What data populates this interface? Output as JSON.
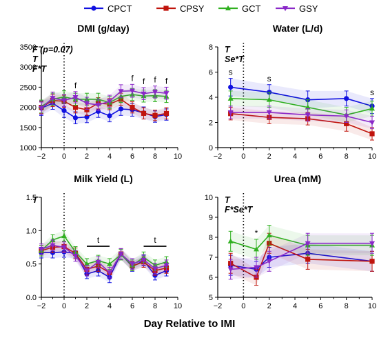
{
  "figure": {
    "xlabel": "Day Relative to IMI"
  },
  "legend": [
    {
      "name": "CPCT",
      "color": "#1010e0",
      "marker": "circle"
    },
    {
      "name": "CPSY",
      "color": "#c0140c",
      "marker": "square"
    },
    {
      "name": "GCT",
      "color": "#30b020",
      "marker": "triangle"
    },
    {
      "name": "GSY",
      "color": "#8a28c8",
      "marker": "triangle-down"
    }
  ],
  "chart_data": [
    {
      "type": "line",
      "title": "DMI (g/day)",
      "xlim": [
        -2,
        10
      ],
      "ylim": [
        1000,
        3500
      ],
      "xticks": [
        -2,
        0,
        2,
        4,
        6,
        8,
        10
      ],
      "yticks": [
        1000,
        1500,
        2000,
        2500,
        3000,
        3500
      ],
      "annotations": [
        "F (p=0.07)",
        "T",
        "F*T"
      ],
      "markers": [
        {
          "x": 1,
          "label": "f"
        },
        {
          "x": 6,
          "label": "f"
        },
        {
          "x": 7,
          "label": "f"
        },
        {
          "x": 8,
          "label": "f"
        },
        {
          "x": 9,
          "label": "f"
        }
      ],
      "series": [
        {
          "name": "CPCT",
          "x": [
            -2,
            -1,
            0,
            1,
            2,
            3,
            4,
            5,
            6,
            7,
            8,
            9
          ],
          "y": [
            1980,
            2100,
            1920,
            1740,
            1760,
            1900,
            1790,
            1960,
            1940,
            1860,
            1770,
            1820
          ],
          "err": [
            180,
            150,
            170,
            150,
            140,
            150,
            150,
            160,
            160,
            150,
            140,
            140
          ]
        },
        {
          "name": "CPSY",
          "x": [
            -2,
            -1,
            0,
            1,
            2,
            3,
            4,
            5,
            6,
            7,
            8,
            9
          ],
          "y": [
            2000,
            2170,
            2150,
            2000,
            1940,
            2100,
            2080,
            2200,
            2000,
            1850,
            1800,
            1850
          ],
          "err": [
            150,
            150,
            150,
            140,
            140,
            140,
            140,
            150,
            140,
            140,
            130,
            140
          ]
        },
        {
          "name": "GCT",
          "x": [
            -2,
            -1,
            0,
            1,
            2,
            3,
            4,
            5,
            6,
            7,
            8,
            9
          ],
          "y": [
            2020,
            2200,
            2260,
            2200,
            2200,
            2200,
            2120,
            2270,
            2320,
            2280,
            2290,
            2270
          ],
          "err": [
            160,
            150,
            150,
            150,
            150,
            150,
            150,
            150,
            150,
            150,
            150,
            150
          ]
        },
        {
          "name": "GSY",
          "x": [
            -2,
            -1,
            0,
            1,
            2,
            3,
            4,
            5,
            6,
            7,
            8,
            9
          ],
          "y": [
            1980,
            2230,
            2170,
            2250,
            2100,
            2060,
            2150,
            2400,
            2410,
            2340,
            2380,
            2350
          ],
          "err": [
            150,
            150,
            150,
            140,
            150,
            140,
            150,
            160,
            160,
            150,
            150,
            150
          ]
        }
      ]
    },
    {
      "type": "line",
      "title": "Water (L/d)",
      "xlim": [
        -2,
        10
      ],
      "ylim": [
        0,
        8
      ],
      "xticks": [
        -2,
        0,
        2,
        4,
        6,
        8,
        10
      ],
      "yticks": [
        0,
        2,
        4,
        6,
        8
      ],
      "annotations": [
        "T",
        "Se*T"
      ],
      "markers": [
        {
          "x": -1,
          "label": "s"
        },
        {
          "x": 2,
          "label": "s"
        },
        {
          "x": 10,
          "label": "s"
        }
      ],
      "series": [
        {
          "name": "CPCT",
          "x": [
            -1,
            2,
            5,
            8,
            10
          ],
          "y": [
            4.8,
            4.4,
            3.8,
            3.9,
            3.3
          ],
          "err": [
            0.7,
            0.6,
            0.7,
            0.6,
            0.6
          ]
        },
        {
          "name": "CPSY",
          "x": [
            -1,
            2,
            5,
            8,
            10
          ],
          "y": [
            2.7,
            2.4,
            2.3,
            1.9,
            1.1
          ],
          "err": [
            0.5,
            0.5,
            0.5,
            0.6,
            0.5
          ]
        },
        {
          "name": "GCT",
          "x": [
            -1,
            2,
            5,
            8,
            10
          ],
          "y": [
            3.9,
            3.8,
            3.2,
            2.6,
            3.1
          ],
          "err": [
            0.6,
            0.6,
            0.6,
            0.6,
            0.6
          ]
        },
        {
          "name": "GSY",
          "x": [
            -1,
            2,
            5,
            8,
            10
          ],
          "y": [
            2.8,
            2.8,
            2.6,
            2.5,
            2.0
          ],
          "err": [
            0.5,
            0.5,
            0.5,
            0.5,
            0.5
          ]
        }
      ]
    },
    {
      "type": "line",
      "title": "Milk Yield (L)",
      "xlim": [
        -2,
        10
      ],
      "ylim": [
        0.0,
        1.5
      ],
      "xticks": [
        -2,
        0,
        2,
        4,
        6,
        8,
        10
      ],
      "yticks": [
        0.0,
        0.5,
        1.0,
        1.5
      ],
      "annotations": [
        "T"
      ],
      "markers": [
        {
          "x1": 2,
          "x2": 4,
          "y": 0.6,
          "label": "t"
        },
        {
          "x1": 7,
          "x2": 9,
          "y": 0.6,
          "label": "t"
        }
      ],
      "series": [
        {
          "name": "CPCT",
          "x": [
            -2,
            -1,
            0,
            1,
            2,
            3,
            4,
            5,
            6,
            7,
            8,
            9
          ],
          "y": [
            0.67,
            0.67,
            0.68,
            0.66,
            0.35,
            0.4,
            0.3,
            0.65,
            0.46,
            0.55,
            0.33,
            0.4
          ],
          "err": [
            0.08,
            0.08,
            0.08,
            0.08,
            0.07,
            0.08,
            0.08,
            0.08,
            0.07,
            0.08,
            0.07,
            0.08
          ]
        },
        {
          "name": "CPSY",
          "x": [
            -2,
            -1,
            0,
            1,
            2,
            3,
            4,
            5,
            6,
            7,
            8,
            9
          ],
          "y": [
            0.7,
            0.75,
            0.76,
            0.66,
            0.42,
            0.47,
            0.37,
            0.65,
            0.47,
            0.53,
            0.4,
            0.44
          ],
          "err": [
            0.08,
            0.08,
            0.08,
            0.08,
            0.08,
            0.08,
            0.08,
            0.08,
            0.07,
            0.08,
            0.07,
            0.08
          ]
        },
        {
          "name": "GCT",
          "x": [
            -2,
            -1,
            0,
            1,
            2,
            3,
            4,
            5,
            6,
            7,
            8,
            9
          ],
          "y": [
            0.7,
            0.86,
            0.92,
            0.68,
            0.5,
            0.55,
            0.5,
            0.64,
            0.48,
            0.6,
            0.48,
            0.53
          ],
          "err": [
            0.08,
            0.08,
            0.08,
            0.08,
            0.08,
            0.08,
            0.08,
            0.08,
            0.08,
            0.08,
            0.08,
            0.08
          ]
        },
        {
          "name": "GSY",
          "x": [
            -2,
            -1,
            0,
            1,
            2,
            3,
            4,
            5,
            6,
            7,
            8,
            9
          ],
          "y": [
            0.72,
            0.78,
            0.75,
            0.62,
            0.4,
            0.53,
            0.37,
            0.65,
            0.5,
            0.56,
            0.43,
            0.48
          ],
          "err": [
            0.08,
            0.08,
            0.08,
            0.08,
            0.08,
            0.08,
            0.08,
            0.08,
            0.08,
            0.08,
            0.08,
            0.08
          ]
        }
      ]
    },
    {
      "type": "line",
      "title": "Urea (mM)",
      "xlim": [
        -2,
        10
      ],
      "ylim": [
        5,
        10
      ],
      "xticks": [
        -2,
        0,
        2,
        4,
        6,
        8,
        10
      ],
      "yticks": [
        5,
        6,
        7,
        8,
        9,
        10
      ],
      "annotations": [
        "T",
        "F*Se*T"
      ],
      "markers": [
        {
          "x": 1,
          "label": "*"
        }
      ],
      "series": [
        {
          "name": "CPCT",
          "x": [
            -1,
            1,
            2,
            5,
            10
          ],
          "y": [
            6.6,
            6.4,
            7.0,
            7.2,
            6.8
          ],
          "err": [
            0.5,
            0.4,
            0.5,
            0.5,
            0.5
          ]
        },
        {
          "name": "CPSY",
          "x": [
            -1,
            1,
            2,
            5,
            10
          ],
          "y": [
            6.7,
            6.0,
            7.7,
            6.9,
            6.8
          ],
          "err": [
            0.5,
            0.4,
            0.5,
            0.5,
            0.5
          ]
        },
        {
          "name": "GCT",
          "x": [
            -1,
            1,
            2,
            5,
            10
          ],
          "y": [
            7.8,
            7.4,
            8.1,
            7.6,
            7.6
          ],
          "err": [
            0.5,
            0.5,
            0.5,
            0.5,
            0.5
          ]
        },
        {
          "name": "GSY",
          "x": [
            -1,
            1,
            2,
            5,
            10
          ],
          "y": [
            6.4,
            6.5,
            6.8,
            7.7,
            7.7
          ],
          "err": [
            0.5,
            0.5,
            0.5,
            0.5,
            0.5
          ]
        }
      ]
    }
  ]
}
